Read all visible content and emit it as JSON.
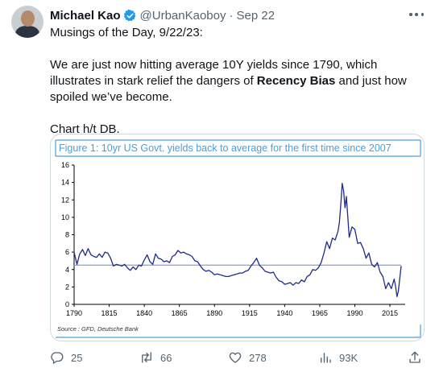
{
  "tweet": {
    "author_name": "Michael Kao",
    "handle": "@UrbanKaoboy",
    "separator": "·",
    "date": "Sep 22",
    "line1": "Musings of the Day, 9/22/23:",
    "line2_pre": "We are just now hitting average 10Y yields since 1790, which illustrates in stark relief the dangers of ",
    "line2_bold": "Recency Bias",
    "line2_post": " and just how spoiled we’ve become.",
    "line3": "Chart h/t DB."
  },
  "actions": {
    "replies": "25",
    "reposts": "66",
    "likes": "278",
    "views": "93K"
  },
  "icons": {
    "verified": "verified-badge-icon",
    "more": "more-horizontal-icon",
    "reply": "reply-icon",
    "repost": "repost-icon",
    "like": "heart-icon",
    "views": "views-chart-icon",
    "share": "share-icon"
  },
  "colors": {
    "verified": "#1d9bf0",
    "series": "#1f2a8a",
    "average_line": "#8fa6e0",
    "title": "#4aa0d8",
    "frame": "#4aa0d8"
  },
  "chart_data": {
    "type": "line",
    "title": "Figure 1: 10yr US Govt. yields back to average for the first time since 2007",
    "source": "Source : GFD, Deutsche Bank",
    "xlabel": "",
    "ylabel": "",
    "xlim": [
      1790,
      2023
    ],
    "ylim": [
      0,
      16
    ],
    "x_ticks": [
      1790,
      1815,
      1840,
      1865,
      1890,
      1915,
      1940,
      1965,
      1990,
      2015
    ],
    "y_ticks": [
      0,
      2,
      4,
      6,
      8,
      10,
      12,
      14,
      16
    ],
    "grid": false,
    "legend": "none",
    "average": 4.5,
    "series": [
      {
        "x": [
          1790,
          1792,
          1794,
          1796,
          1798,
          1800,
          1802,
          1804,
          1806,
          1808,
          1810,
          1812,
          1814,
          1816,
          1818,
          1820,
          1822,
          1824,
          1826,
          1828,
          1830,
          1832,
          1834,
          1836,
          1838,
          1840,
          1842,
          1844,
          1846,
          1848,
          1850,
          1852,
          1854,
          1856,
          1858,
          1860,
          1862,
          1864,
          1866,
          1868,
          1870,
          1872,
          1874,
          1876,
          1878,
          1880,
          1882,
          1884,
          1886,
          1888,
          1890,
          1892,
          1894,
          1896,
          1898,
          1900,
          1902,
          1904,
          1906,
          1908,
          1910,
          1912,
          1914,
          1916,
          1918,
          1920,
          1922,
          1924,
          1926,
          1928,
          1930,
          1932,
          1934,
          1936,
          1938,
          1940,
          1942,
          1944,
          1946,
          1948,
          1950,
          1952,
          1954,
          1956,
          1958,
          1960,
          1962,
          1964,
          1966,
          1968,
          1970,
          1972,
          1974,
          1976,
          1978,
          1979,
          1980,
          1981,
          1982,
          1983,
          1984,
          1986,
          1988,
          1990,
          1992,
          1994,
          1996,
          1998,
          2000,
          2002,
          2004,
          2006,
          2008,
          2010,
          2012,
          2014,
          2016,
          2018,
          2019,
          2020,
          2021,
          2022,
          2023
        ],
        "y": [
          6.0,
          4.6,
          5.8,
          6.3,
          5.6,
          6.4,
          5.7,
          5.5,
          5.4,
          5.8,
          5.4,
          6.0,
          5.9,
          5.3,
          4.4,
          4.6,
          4.5,
          4.4,
          4.6,
          4.2,
          3.9,
          4.3,
          4.0,
          4.5,
          4.4,
          5.1,
          5.7,
          4.9,
          4.6,
          5.8,
          5.3,
          5.2,
          4.9,
          5.0,
          4.8,
          5.5,
          5.7,
          6.2,
          5.9,
          6.0,
          5.8,
          5.7,
          5.5,
          5.0,
          4.9,
          4.4,
          4.0,
          3.8,
          3.9,
          3.7,
          3.4,
          3.5,
          3.4,
          3.3,
          3.2,
          3.2,
          3.3,
          3.4,
          3.5,
          3.6,
          3.6,
          3.8,
          3.9,
          4.4,
          4.8,
          5.3,
          4.5,
          4.2,
          3.8,
          3.7,
          3.6,
          3.7,
          3.1,
          2.7,
          2.6,
          2.3,
          2.4,
          2.5,
          2.2,
          2.5,
          2.4,
          2.8,
          2.6,
          3.2,
          3.4,
          4.0,
          3.9,
          4.2,
          4.8,
          5.9,
          7.2,
          6.4,
          7.6,
          7.4,
          8.4,
          9.4,
          11.5,
          13.9,
          13.0,
          11.1,
          12.4,
          7.7,
          8.9,
          8.6,
          7.0,
          7.1,
          6.4,
          5.3,
          5.9,
          4.6,
          4.3,
          4.8,
          3.7,
          3.2,
          1.8,
          2.5,
          1.8,
          2.9,
          2.1,
          0.9,
          1.5,
          3.0,
          4.4
        ]
      }
    ]
  }
}
